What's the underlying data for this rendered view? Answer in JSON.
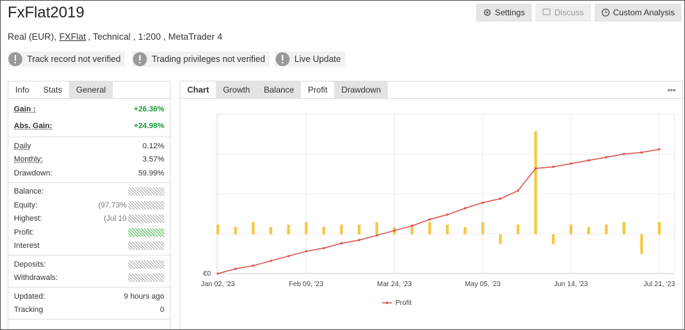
{
  "header": {
    "title": "FxFlat2019",
    "buttons": [
      "Settings",
      "Discuss",
      "Custom Analysis"
    ],
    "subtitle": {
      "prefix": "Real (EUR),",
      "broker": "FXFlat",
      "suffix": ", Technical , 1:200 , MetaTrader 4"
    },
    "badges": [
      "Track record not verified",
      "Trading privileges not verified",
      "Live Update"
    ]
  },
  "stats_panel": {
    "tabs": [
      "Info",
      "Stats",
      "General"
    ],
    "groups": [
      [
        {
          "label": "Gain :",
          "value": "+26.36%"
        },
        {
          "label": "Abs. Gain:",
          "value": "+24.98%"
        }
      ],
      [
        {
          "label": "Daily",
          "value": "0.12%"
        },
        {
          "label": "Monthly:",
          "value": "3.57%"
        },
        {
          "label": "Drawdown:",
          "value": "59.99%"
        }
      ],
      [
        {
          "label": "Balance:"
        },
        {
          "label": "Equity:",
          "note": "(97.73%"
        },
        {
          "label": "Highest:",
          "note": "(Jul 10"
        },
        {
          "label": "Profit:"
        },
        {
          "label": "Interest"
        }
      ],
      [
        {
          "label": "Deposits:"
        },
        {
          "label": "Withdrawals:"
        }
      ],
      [
        {
          "label": "Updated:",
          "value": "9 hours ago"
        },
        {
          "label": "Tracking",
          "value": "0"
        }
      ]
    ]
  },
  "chart_panel": {
    "tabs": [
      "Chart",
      "Growth",
      "Balance",
      "Profit",
      "Drawdown"
    ],
    "active_tab": 3
  },
  "chart_data": {
    "type": "line",
    "categories": [
      "Jan 02, '23",
      null,
      null,
      null,
      null,
      "Feb 09, '23",
      null,
      null,
      null,
      null,
      "Mar 24, '23",
      null,
      null,
      null,
      null,
      "May 05, '23",
      null,
      null,
      null,
      null,
      "Jun 14, '23",
      null,
      null,
      null,
      null,
      "Jul 21, '23"
    ],
    "series": [
      {
        "name": "Profit",
        "type": "line",
        "color": "#d9534f",
        "values": [
          0,
          3,
          5,
          8,
          11,
          14,
          16,
          19,
          21,
          24,
          27,
          30,
          34,
          37,
          41,
          44.5,
          47,
          52,
          66,
          67,
          69,
          71,
          73,
          75,
          76,
          78
        ]
      },
      {
        "type": "bar",
        "axis": "y2",
        "color": "#f5c842",
        "values": [
          4,
          3,
          5,
          3,
          4,
          5,
          3,
          4,
          4,
          5,
          3,
          4,
          5,
          4,
          3,
          5,
          -4,
          4,
          42,
          -4,
          4,
          3,
          4,
          5,
          -8,
          5
        ]
      }
    ],
    "ylim": [
      0,
      100
    ],
    "yticks": [
      {
        "value": 0,
        "label": "€0"
      }
    ],
    "y2lim": [
      -16,
      49
    ],
    "grid": true,
    "legend": "bottom"
  }
}
